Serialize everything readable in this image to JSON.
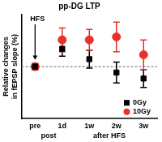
{
  "chart_data": {
    "type": "scatter",
    "title": "pp-DG LTP",
    "y_label": [
      "Relative changes",
      "in fEPSP slope (%)"
    ],
    "categories": [
      "pre",
      "1d",
      "1w",
      "2w",
      "3w"
    ],
    "series": [
      {
        "name": "0Gy",
        "color": "#000000",
        "marker": "square",
        "values": [
          100,
          112,
          105,
          96,
          92
        ],
        "errors": [
          2,
          5,
          6,
          7,
          6
        ]
      },
      {
        "name": "10Gy",
        "color": "#e8312a",
        "marker": "circle",
        "values": [
          100,
          118,
          118,
          120,
          108
        ],
        "errors": [
          2,
          8,
          7,
          10,
          10
        ]
      }
    ],
    "ylim": [
      65,
      135
    ],
    "reference_line": 100,
    "annotations": [
      "HFS",
      "post",
      "after HFS"
    ],
    "tick_labels": "x",
    "grid": false,
    "legend": "lower right"
  }
}
